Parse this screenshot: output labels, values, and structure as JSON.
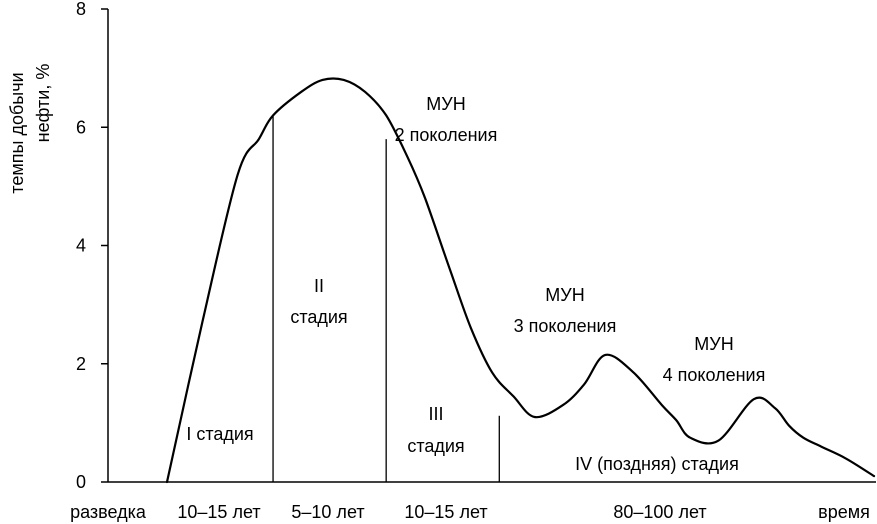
{
  "chart_data": {
    "type": "line",
    "ylabel_lines": [
      "темпы добычи",
      "нефти, %"
    ],
    "xlabel": "время",
    "ylim": [
      0,
      8
    ],
    "yticks": [
      0,
      2,
      4,
      6,
      8
    ],
    "grid": false,
    "series": [
      {
        "x": [
          0.0,
          0.05,
          0.1,
          0.13,
          0.15,
          0.19,
          0.22,
          0.25,
          0.28,
          0.31,
          0.34,
          0.365,
          0.4,
          0.43,
          0.46,
          0.49,
          0.52,
          0.56,
          0.59,
          0.62,
          0.66,
          0.7,
          0.72,
          0.74,
          0.78,
          0.83,
          0.86,
          0.88,
          0.9,
          0.925,
          0.96,
          1.0
        ],
        "values": [
          0.0,
          2.7,
          5.2,
          5.8,
          6.2,
          6.6,
          6.8,
          6.8,
          6.6,
          6.2,
          5.5,
          4.8,
          3.6,
          2.6,
          1.85,
          1.45,
          1.1,
          1.3,
          1.65,
          2.15,
          1.85,
          1.3,
          1.05,
          0.75,
          0.7,
          1.4,
          1.25,
          0.95,
          0.75,
          0.6,
          0.4,
          0.1
        ]
      }
    ],
    "boundaries": [
      {
        "x": 0.0,
        "y": 0.0
      },
      {
        "x": 0.15,
        "y": 6.2
      },
      {
        "x": 0.31,
        "y": 5.8
      },
      {
        "x": 0.47,
        "y": 1.12
      }
    ],
    "bottom_labels": [
      "разведка",
      "10–15 лет",
      "5–10 лет",
      "10–15 лет",
      "80–100 лет",
      "время"
    ],
    "stages": [
      {
        "lines": [
          "I стадия"
        ]
      },
      {
        "lines": [
          "II",
          "стадия"
        ]
      },
      {
        "lines": [
          "III",
          "стадия"
        ]
      },
      {
        "lines": [
          "IV (поздняя) стадия"
        ]
      }
    ],
    "annotations": [
      {
        "lines": [
          "МУН",
          "2 поколения"
        ]
      },
      {
        "lines": [
          "МУН",
          "3 поколения"
        ]
      },
      {
        "lines": [
          "МУН",
          "4 поколения"
        ]
      }
    ]
  }
}
